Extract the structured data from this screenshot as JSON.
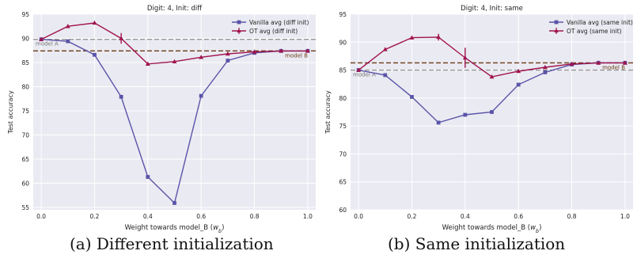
{
  "colors": {
    "background": "#ffffff",
    "plot_bg": "#eaeaf2",
    "grid": "#ffffff",
    "vanilla": "#5a54a8",
    "ot": "#a0154e",
    "model_a_line": "#8c8c8c",
    "model_b_line": "#6b3b14",
    "text": "#222222"
  },
  "captions": [
    "(a) Different initialization",
    "(b) Same initialization"
  ],
  "chart_data": [
    {
      "type": "line",
      "title": "Digit: 4, Init: diff",
      "xlabel": "Weight towards model_B (w_b)",
      "ylabel": "Test accuracy",
      "xlim": [
        -0.03,
        1.03
      ],
      "ylim": [
        54.5,
        95
      ],
      "xticks": [
        0.0,
        0.2,
        0.4,
        0.6,
        0.8,
        1.0
      ],
      "xtick_labels": [
        "0.0",
        "0.2",
        "0.4",
        "0.6",
        "0.8",
        "1.0"
      ],
      "yticks": [
        55,
        60,
        65,
        70,
        75,
        80,
        85,
        90,
        95
      ],
      "grid": true,
      "legend_position": "top-right",
      "x": [
        0.0,
        0.1,
        0.2,
        0.3,
        0.4,
        0.5,
        0.6,
        0.7,
        0.8,
        0.9,
        1.0
      ],
      "series": [
        {
          "name": "Vanilla avg (diff init)",
          "marker": "square",
          "values": [
            89.8,
            89.4,
            86.6,
            77.9,
            61.3,
            55.9,
            78.1,
            85.4,
            87.0,
            87.4,
            87.4
          ]
        },
        {
          "name": "OT avg (diff init)",
          "marker": "triangle",
          "values": [
            89.8,
            92.5,
            93.2,
            90.0,
            84.7,
            85.2,
            86.1,
            86.8,
            87.2,
            87.4,
            87.4
          ],
          "error": [
            0,
            0,
            0,
            1.1,
            0,
            0,
            0,
            0,
            0,
            0,
            0
          ]
        }
      ],
      "reference_lines": [
        {
          "label": "model A",
          "y": 89.8,
          "style": "dashed",
          "label_side": "left"
        },
        {
          "label": "model B",
          "y": 87.4,
          "style": "dashed",
          "label_side": "right"
        }
      ]
    },
    {
      "type": "line",
      "title": "Digit: 4, Init: same",
      "xlabel": "Weight towards model_B (w_b)",
      "ylabel": "Test accuracy",
      "xlim": [
        -0.03,
        1.03
      ],
      "ylim": [
        60,
        95
      ],
      "xticks": [
        0.0,
        0.2,
        0.4,
        0.6,
        0.8,
        1.0
      ],
      "xtick_labels": [
        "0.0",
        "0.2",
        "0.4",
        "0.6",
        "0.8",
        "1.0"
      ],
      "yticks": [
        60,
        65,
        70,
        75,
        80,
        85,
        90,
        95
      ],
      "grid": true,
      "legend_position": "top-right",
      "x": [
        0.0,
        0.1,
        0.2,
        0.3,
        0.4,
        0.5,
        0.6,
        0.7,
        0.8,
        0.9,
        1.0
      ],
      "series": [
        {
          "name": "Vanilla avg (same init)",
          "marker": "square",
          "values": [
            85.0,
            84.1,
            80.2,
            75.6,
            77.0,
            77.5,
            82.4,
            84.6,
            86.0,
            86.3,
            86.3
          ]
        },
        {
          "name": "OT avg (same init)",
          "marker": "triangle",
          "values": [
            85.0,
            88.7,
            90.8,
            90.9,
            87.2,
            83.8,
            84.8,
            85.5,
            86.1,
            86.3,
            86.3
          ],
          "error": [
            0,
            0,
            0,
            0.6,
            1.8,
            0,
            0,
            0,
            0,
            0,
            0
          ]
        }
      ],
      "reference_lines": [
        {
          "label": "model A",
          "y": 85.0,
          "style": "dashed",
          "label_side": "left"
        },
        {
          "label": "model B",
          "y": 86.3,
          "style": "dashed",
          "label_side": "right"
        }
      ]
    }
  ]
}
